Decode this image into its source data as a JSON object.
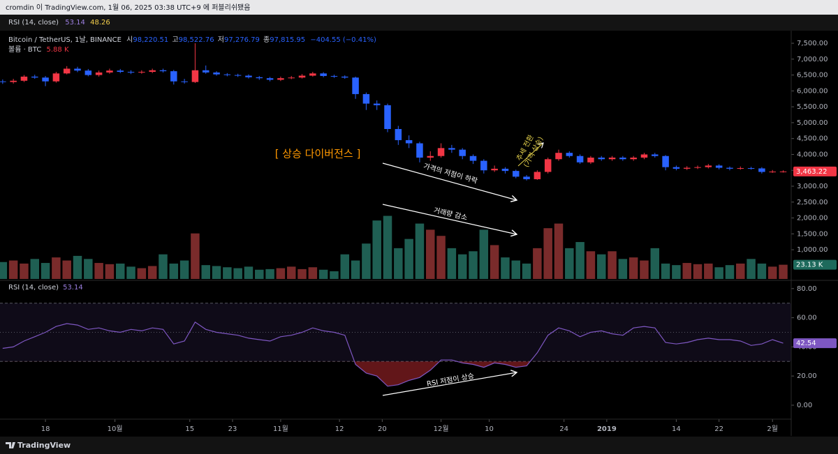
{
  "header": {
    "published": "cromdin 이 TradingView.com, 1월 06, 2025 03:38 UTC+9 에 퍼블리쉬됐음",
    "rsi_legend": {
      "name": "RSI (14, close)",
      "value": "53.14",
      "value2": "48.26"
    },
    "symbol": "Bitcoin / TetherUS, 1날, BINANCE",
    "ohlc": [
      {
        "label": "시",
        "value": "98,220.51"
      },
      {
        "label": "고",
        "value": "98,522.76"
      },
      {
        "label": "저",
        "value": "97,276.79"
      },
      {
        "label": "종",
        "value": "97,815.95"
      }
    ],
    "change": "−404.55 (−0.41%)",
    "volume_legend": {
      "name": "볼륨 · BTC",
      "value": "5.88 K"
    }
  },
  "footer": {
    "brand": "TradingView"
  },
  "chart_data": {
    "type": "candlestick",
    "up_color": "#f23645",
    "down_color": "#2962ff",
    "x": [
      0,
      2,
      4,
      6,
      8,
      10,
      12,
      14,
      16,
      18,
      20,
      22,
      24,
      26,
      28,
      30,
      32,
      34,
      36,
      38,
      40,
      42,
      44,
      46,
      48,
      50,
      52,
      54,
      56,
      58,
      60,
      62,
      64,
      66,
      68,
      70,
      72,
      74,
      76,
      78,
      80,
      82,
      84,
      86,
      88,
      90,
      92,
      94,
      96,
      98,
      100,
      102,
      104,
      106,
      108,
      110,
      112,
      114,
      116,
      118,
      120,
      122,
      124,
      126,
      128,
      130,
      132,
      134,
      136,
      138,
      140,
      142,
      144,
      146
    ],
    "xlim": [
      -0.5,
      147.5
    ],
    "xticks": [
      {
        "value": 8,
        "label": "18"
      },
      {
        "value": 21,
        "label": "10월"
      },
      {
        "value": 35,
        "label": "15"
      },
      {
        "value": 43,
        "label": "23"
      },
      {
        "value": 52,
        "label": "11월"
      },
      {
        "value": 63,
        "label": "12"
      },
      {
        "value": 71,
        "label": "20"
      },
      {
        "value": 82,
        "label": "12월"
      },
      {
        "value": 91,
        "label": "10"
      },
      {
        "value": 105,
        "label": "24"
      },
      {
        "value": 113,
        "label": "2019"
      },
      {
        "value": 126,
        "label": "14"
      },
      {
        "value": 134,
        "label": "22"
      },
      {
        "value": 144,
        "label": "2월"
      }
    ],
    "open": [
      6300,
      6280,
      6320,
      6450,
      6420,
      6300,
      6550,
      6700,
      6640,
      6500,
      6580,
      6640,
      6600,
      6580,
      6600,
      6650,
      6620,
      6300,
      6280,
      6650,
      6580,
      6520,
      6500,
      6480,
      6430,
      6400,
      6350,
      6400,
      6420,
      6480,
      6550,
      6470,
      6450,
      6420,
      5900,
      5600,
      5550,
      4800,
      4450,
      4350,
      3900,
      3950,
      4200,
      4150,
      3950,
      3800,
      3500,
      3550,
      3480,
      3300,
      3220,
      3450,
      3850,
      4050,
      3950,
      3750,
      3900,
      3850,
      3900,
      3850,
      3900,
      4000,
      3950,
      3600,
      3550,
      3580,
      3600,
      3650,
      3580,
      3550,
      3570,
      3560,
      3450,
      3460
    ],
    "high": [
      6360,
      6380,
      6500,
      6510,
      6470,
      6600,
      6780,
      6760,
      6690,
      6640,
      6700,
      6690,
      6650,
      6650,
      6700,
      6700,
      6660,
      6380,
      7500,
      6800,
      6620,
      6560,
      6540,
      6520,
      6470,
      6440,
      6450,
      6470,
      6530,
      6600,
      6590,
      6510,
      6490,
      6450,
      5950,
      5700,
      5600,
      4900,
      4600,
      4400,
      4100,
      4350,
      4300,
      4200,
      4000,
      3850,
      3650,
      3600,
      3520,
      3350,
      3500,
      3900,
      4150,
      4100,
      4000,
      3950,
      3950,
      3950,
      3950,
      3950,
      4050,
      4050,
      3980,
      3650,
      3630,
      3650,
      3700,
      3690,
      3620,
      3620,
      3610,
      3600,
      3510,
      3500
    ],
    "low": [
      6220,
      6230,
      6280,
      6380,
      6150,
      6260,
      6520,
      6590,
      6460,
      6450,
      6540,
      6560,
      6530,
      6540,
      6560,
      6580,
      6200,
      6230,
      6250,
      6540,
      6480,
      6460,
      6440,
      6390,
      6350,
      6300,
      6310,
      6370,
      6390,
      6450,
      6430,
      6410,
      6380,
      5750,
      5400,
      5400,
      4700,
      4300,
      4200,
      3750,
      3800,
      3900,
      4050,
      3850,
      3700,
      3400,
      3450,
      3400,
      3250,
      3180,
      3200,
      3400,
      3800,
      3900,
      3700,
      3700,
      3800,
      3800,
      3800,
      3800,
      3850,
      3900,
      3500,
      3500,
      3510,
      3540,
      3560,
      3530,
      3500,
      3520,
      3520,
      3400,
      3420,
      3430
    ],
    "close": [
      6280,
      6320,
      6450,
      6420,
      6300,
      6550,
      6700,
      6640,
      6500,
      6580,
      6640,
      6600,
      6580,
      6600,
      6650,
      6620,
      6300,
      6280,
      6650,
      6580,
      6520,
      6500,
      6480,
      6430,
      6400,
      6350,
      6400,
      6420,
      6480,
      6550,
      6470,
      6450,
      6420,
      5900,
      5600,
      5550,
      4800,
      4450,
      4350,
      3900,
      3950,
      4200,
      4150,
      3950,
      3800,
      3500,
      3550,
      3480,
      3300,
      3220,
      3450,
      3850,
      4050,
      3950,
      3750,
      3900,
      3850,
      3900,
      3850,
      3900,
      4000,
      3950,
      3600,
      3550,
      3580,
      3600,
      3650,
      3580,
      3550,
      3570,
      3560,
      3450,
      3460,
      3463.22
    ],
    "close_label": "3,463.22",
    "ylim": [
      80,
      7830
    ],
    "yticks": [
      {
        "value": 7500,
        "label": "7,500.00"
      },
      {
        "value": 7000,
        "label": "7,000.00"
      },
      {
        "value": 6500,
        "label": "6,500.00"
      },
      {
        "value": 6000,
        "label": "6,000.00"
      },
      {
        "value": 5500,
        "label": "5,500.00"
      },
      {
        "value": 5000,
        "label": "5,000.00"
      },
      {
        "value": 4500,
        "label": "4,500.00"
      },
      {
        "value": 4000,
        "label": "4,000.00"
      },
      {
        "value": 3500,
        "label": "3,500.00"
      },
      {
        "value": 3000,
        "label": "3,000.00"
      },
      {
        "value": 2500,
        "label": "2,500.00"
      },
      {
        "value": 2000,
        "label": "2,000.00"
      },
      {
        "value": 1500,
        "label": "1,500.00"
      },
      {
        "value": 1000,
        "label": "1,000.00"
      }
    ],
    "volume": {
      "up_color": "#7a2b2b",
      "down_color": "#1f5f53",
      "ylim": [
        0,
        400
      ],
      "values": [
        27.5,
        30,
        25,
        32.5,
        26,
        35,
        30,
        37.5,
        32.5,
        26,
        24,
        25,
        20,
        17.5,
        21,
        40,
        25,
        30,
        74,
        22.5,
        21,
        19,
        17.5,
        20,
        15,
        16,
        17.5,
        20,
        16,
        19,
        15,
        12.5,
        40,
        30,
        57.5,
        95,
        102.5,
        50,
        65,
        90,
        80,
        70,
        50,
        40,
        45,
        80,
        55,
        35,
        30,
        25,
        50,
        82.5,
        90,
        50,
        60,
        45,
        40,
        45,
        32.5,
        35,
        30,
        50,
        25,
        22.5,
        26,
        24,
        25,
        19,
        22.5,
        25,
        32.5,
        25,
        20,
        23.13
      ],
      "last_label": "23.13 K"
    },
    "rsi": {
      "name": "RSI (14, close)",
      "legend_value": "53.14",
      "color": "#7e57c2",
      "oversold_color": "#b2282e",
      "values": [
        39,
        40,
        44,
        47,
        50,
        54,
        56,
        55,
        52,
        53,
        51,
        50,
        52,
        51,
        53,
        52,
        42,
        44,
        57,
        52,
        50,
        49,
        48,
        46,
        45,
        44,
        47,
        48,
        50,
        53,
        51,
        50,
        48,
        28,
        22,
        20,
        13,
        14,
        17,
        19,
        24,
        31,
        31,
        29,
        28,
        26,
        29,
        28,
        26,
        27,
        36,
        48,
        53,
        51,
        47,
        50,
        51,
        49,
        48,
        53,
        54,
        53,
        43,
        42,
        43,
        45,
        46,
        45,
        45,
        44,
        41,
        42,
        45,
        42.54
      ],
      "last_label": "42.54",
      "ylim": [
        -9.1,
        84.7
      ],
      "yticks": [
        {
          "value": 80,
          "label": "80.00"
        },
        {
          "value": 60,
          "label": "60.00"
        },
        {
          "value": 40,
          "label": "40.00"
        },
        {
          "value": 20,
          "label": "20.00"
        },
        {
          "value": 0,
          "label": "0.00"
        }
      ],
      "bands": [
        70,
        50,
        30
      ]
    },
    "annotations": [
      "[ 상승 다이버전스 ]",
      "가격의 저점이 하락",
      "거래량 감소",
      "RSI 저점이 상승",
      "추세 전환",
      "(가격 상승)"
    ]
  }
}
